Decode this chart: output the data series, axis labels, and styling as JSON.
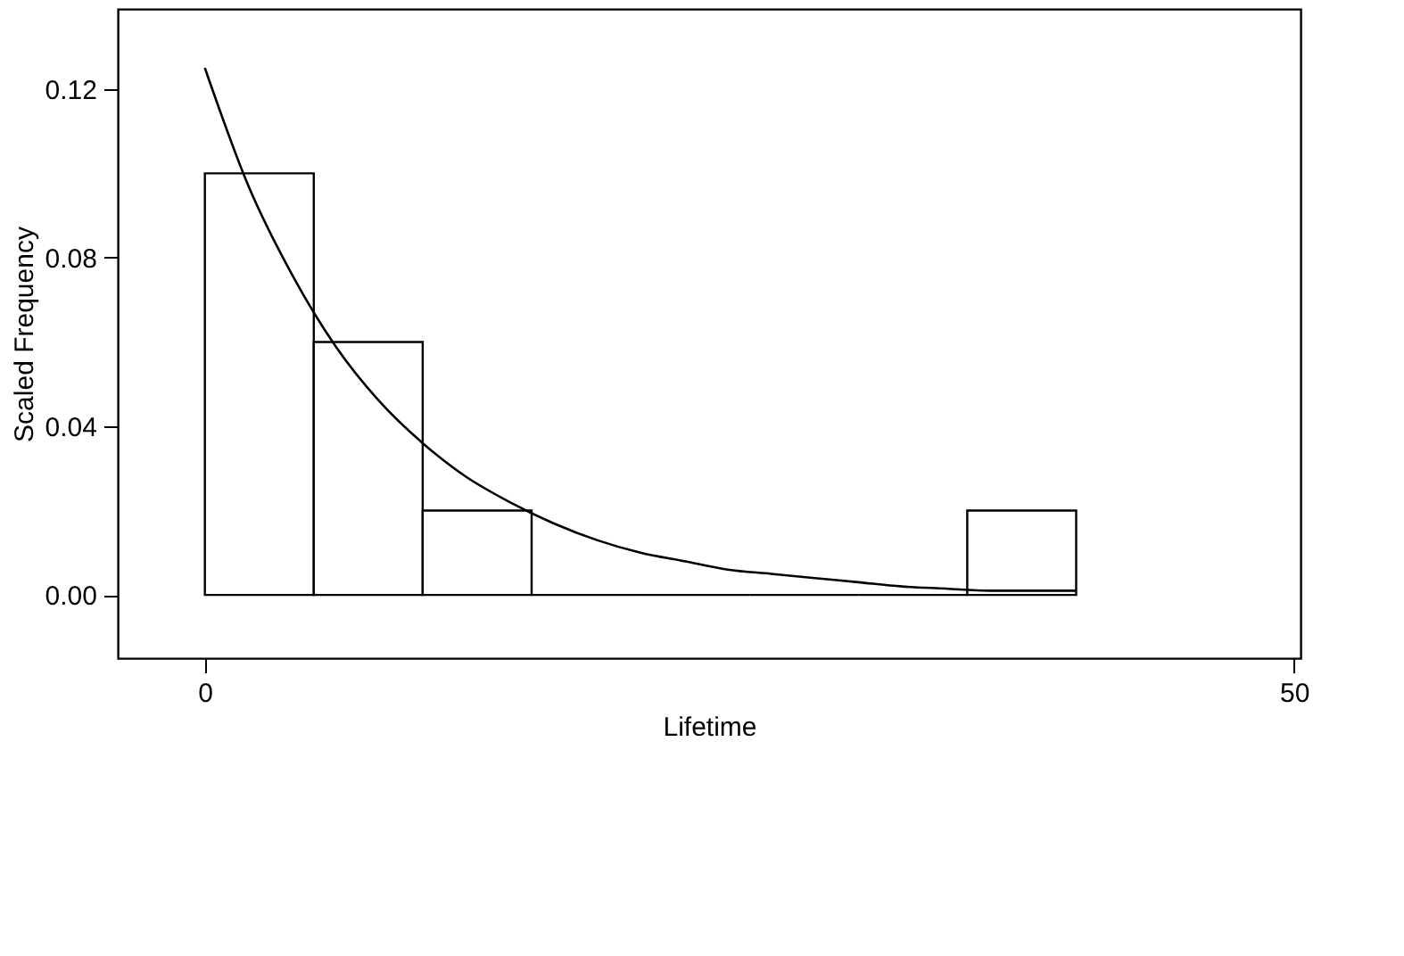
{
  "chart_data": {
    "type": "histogram",
    "xlabel": "Lifetime",
    "ylabel": "Scaled Frequency",
    "bins": [
      0,
      5,
      10,
      15,
      20,
      25,
      30,
      35,
      40
    ],
    "values": [
      0.1,
      0.06,
      0.02,
      0,
      0,
      0,
      0,
      0.02
    ],
    "color": "#000000",
    "series": [
      {
        "type": "line",
        "color": "#000000",
        "x": [
          0,
          2,
          4,
          6,
          8,
          10,
          12,
          14,
          16,
          18,
          20,
          22,
          24,
          26,
          28,
          30,
          32,
          34,
          36,
          38,
          40
        ],
        "values": [
          0.125,
          0.097,
          0.076,
          0.059,
          0.046,
          0.036,
          0.028,
          0.022,
          0.017,
          0.013,
          0.01,
          0.008,
          0.006,
          0.005,
          0.004,
          0.003,
          0.002,
          0.0015,
          0.001,
          0.001,
          0.001
        ]
      }
    ],
    "xlim": [
      -4,
      50.3
    ],
    "ylim": [
      -0.015,
      0.139
    ],
    "xticks": [
      0,
      50
    ],
    "yticks": [
      {
        "value": 0,
        "label": "0.00"
      },
      {
        "value": 0.04,
        "label": "0.04"
      },
      {
        "value": 0.08,
        "label": "0.08"
      },
      {
        "value": 0.12,
        "label": "0.12"
      }
    ],
    "grid": false
  }
}
